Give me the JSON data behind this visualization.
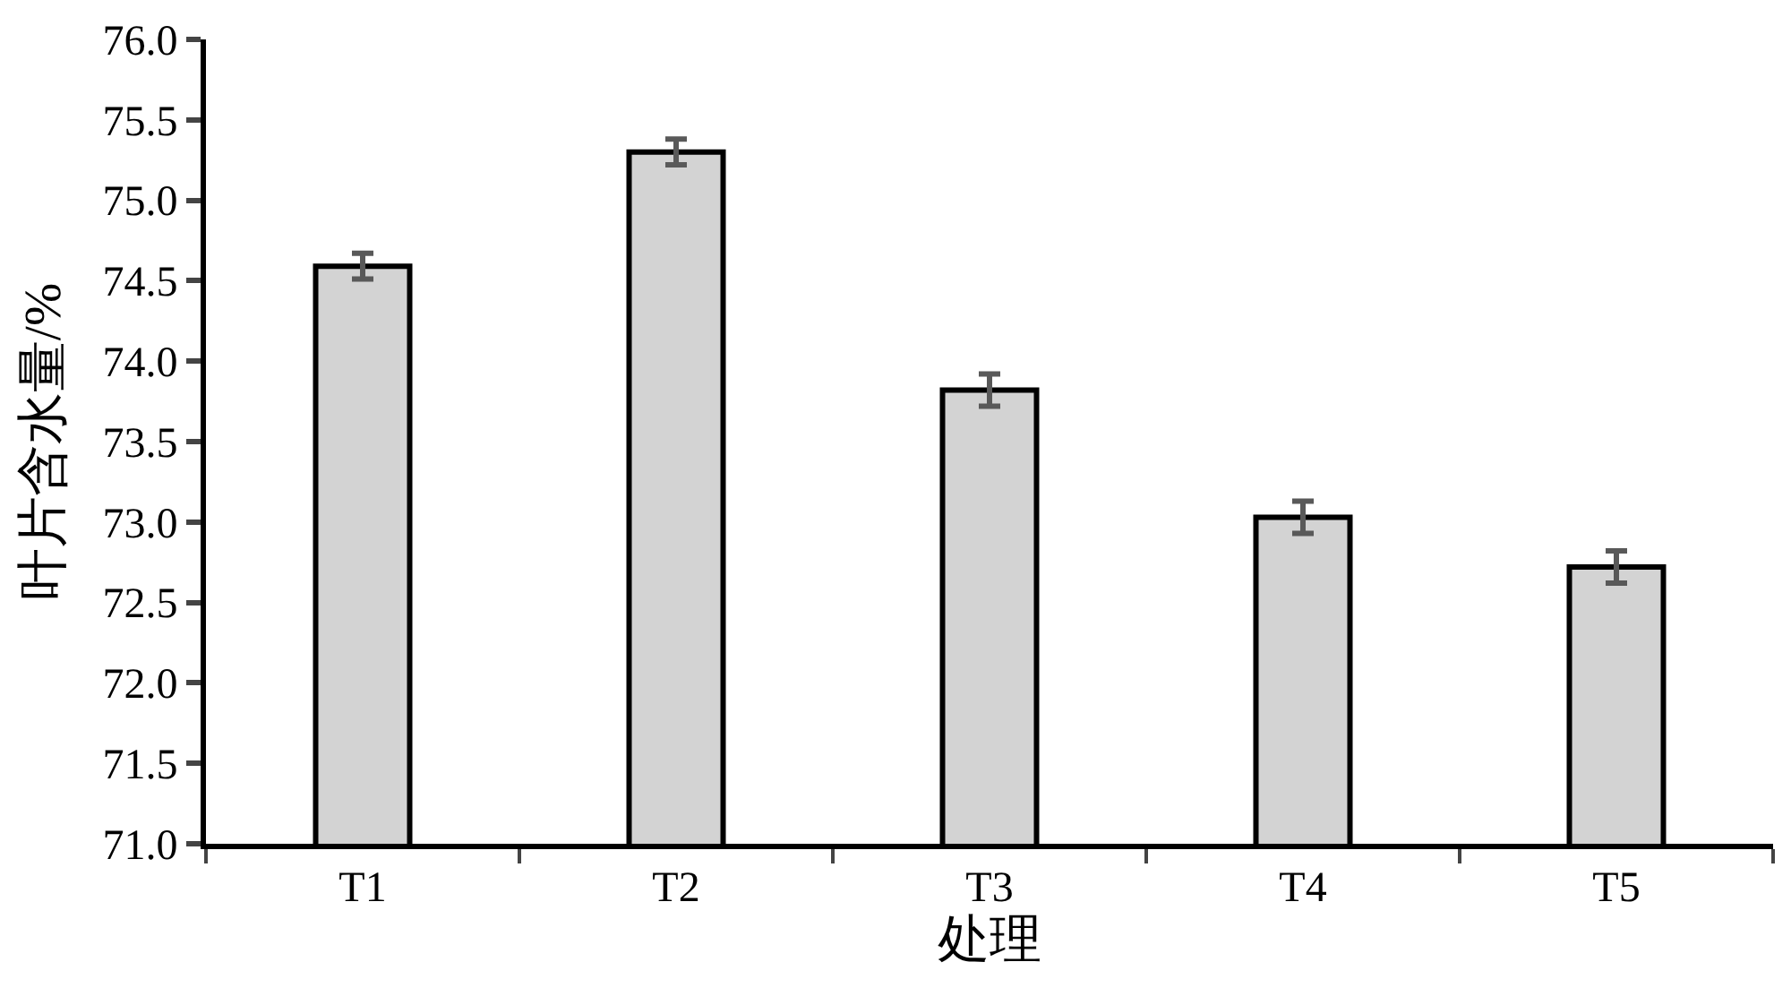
{
  "chart_data": {
    "type": "bar",
    "xlabel": "处理",
    "ylabel": "叶片含水量/%",
    "categories": [
      "T1",
      "T2",
      "T3",
      "T4",
      "T5"
    ],
    "values": [
      74.59,
      75.3,
      73.82,
      73.03,
      72.72
    ],
    "errors": [
      0.08,
      0.08,
      0.1,
      0.1,
      0.1
    ],
    "color": "#d3d3d3",
    "ylim": [
      71.0,
      76.0
    ],
    "yticks": [
      {
        "value": 71,
        "label": "71.0"
      },
      {
        "value": 71.5,
        "label": "71.5"
      },
      {
        "value": 72,
        "label": "72.0"
      },
      {
        "value": 72.5,
        "label": "72.5"
      },
      {
        "value": 73,
        "label": "73.0"
      },
      {
        "value": 73.5,
        "label": "73.5"
      },
      {
        "value": 74,
        "label": "74.0"
      },
      {
        "value": 74.5,
        "label": "74.5"
      },
      {
        "value": 75,
        "label": "75.0"
      },
      {
        "value": 75.5,
        "label": "75.5"
      },
      {
        "value": 76,
        "label": "76.0"
      }
    ]
  }
}
